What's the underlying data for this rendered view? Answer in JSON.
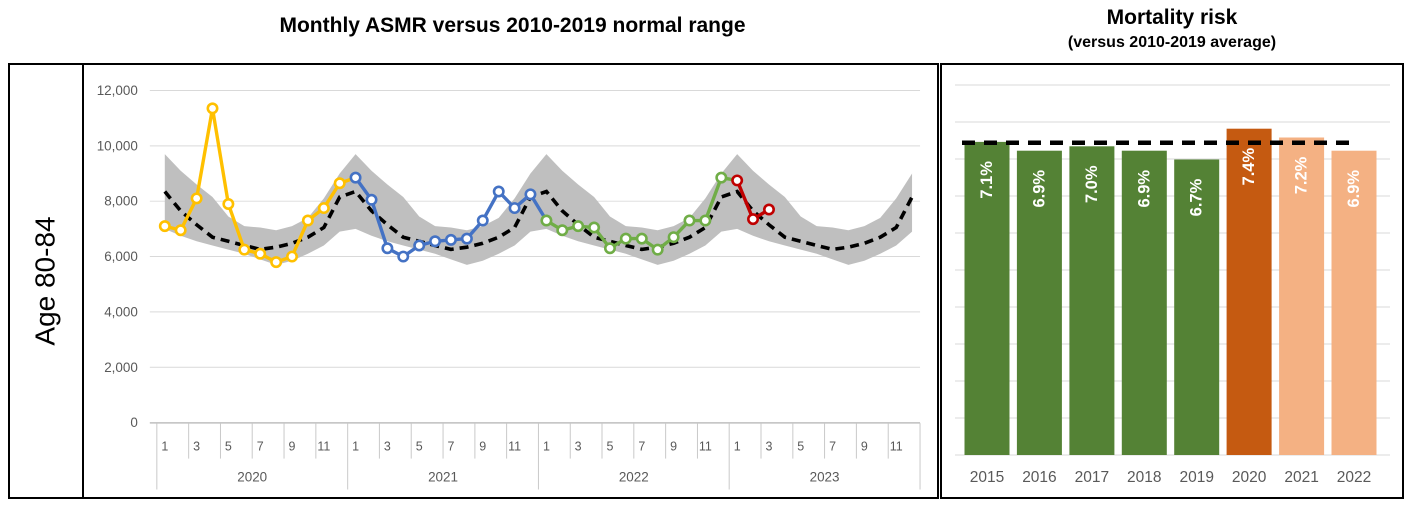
{
  "figure": {
    "left_title": "Monthly ASMR versus 2010-2019 normal range",
    "right_title": "Mortality risk",
    "right_subtitle": "(versus 2010-2019 average)",
    "row_label": "Age 80-84"
  },
  "chart_data": [
    {
      "type": "line",
      "title": "Monthly ASMR versus 2010-2019 normal range",
      "age_group": "Age 80-84",
      "ylim": [
        0,
        12000
      ],
      "y_ticks": [
        0,
        2000,
        4000,
        6000,
        8000,
        10000,
        12000
      ],
      "month_tick_labels": [
        "1",
        "3",
        "5",
        "7",
        "9",
        "11"
      ],
      "year_groups": [
        "2020",
        "2021",
        "2022",
        "2023"
      ],
      "grid": true,
      "band_color": "#BFBFBF",
      "gridline_color": "#D9D9D9",
      "axis_text_color": "#595959",
      "average_line": {
        "label": "2010-2019 average",
        "style": "dashed",
        "color": "#000000"
      },
      "normal_range_upper_by_month": [
        9700,
        9100,
        8600,
        8150,
        7450,
        7100,
        7050,
        6950,
        7100,
        7400,
        8100,
        9000
      ],
      "normal_range_lower_by_month": [
        7000,
        6750,
        6550,
        6400,
        6250,
        6100,
        5900,
        5700,
        5850,
        6100,
        6400,
        6900
      ],
      "average_by_month": [
        8350,
        7650,
        7150,
        6700,
        6550,
        6400,
        6260,
        6340,
        6480,
        6700,
        7050,
        8150
      ],
      "series": [
        {
          "name": "2020",
          "color": "#FFC000",
          "values": [
            7100,
            6950,
            8100,
            11350,
            7900,
            6250,
            6100,
            5800,
            6000,
            7300,
            7750,
            8650
          ]
        },
        {
          "name": "2021",
          "color": "#4472C4",
          "values": [
            8850,
            8050,
            6300,
            6000,
            6400,
            6550,
            6600,
            6650,
            7300,
            8350,
            7750,
            8250
          ]
        },
        {
          "name": "2022",
          "color": "#70AD47",
          "values": [
            7300,
            6950,
            7100,
            7050,
            6300,
            6650,
            6650,
            6250,
            6700,
            7300,
            7300,
            8850
          ]
        },
        {
          "name": "2023",
          "color": "#C00000",
          "values": [
            8750,
            7350,
            7700
          ]
        }
      ]
    },
    {
      "type": "bar",
      "title": "Mortality risk",
      "subtitle": "(versus 2010-2019 average)",
      "categories": [
        "2015",
        "2016",
        "2017",
        "2018",
        "2019",
        "2020",
        "2021",
        "2022"
      ],
      "values": [
        7.1,
        6.9,
        7.0,
        6.9,
        6.7,
        7.4,
        7.2,
        6.9
      ],
      "value_labels": [
        "7.1%",
        "6.9%",
        "7.0%",
        "6.9%",
        "6.7%",
        "7.4%",
        "7.2%",
        "6.9%"
      ],
      "bar_colors": [
        "#548235",
        "#548235",
        "#548235",
        "#548235",
        "#548235",
        "#C55A11",
        "#F4B183",
        "#F4B183"
      ],
      "reference_line_value": 7.08,
      "reference_line_style": "dashed black",
      "ylim": [
        0,
        8.4
      ],
      "grid": true,
      "axis_text_color": "#595959"
    }
  ]
}
